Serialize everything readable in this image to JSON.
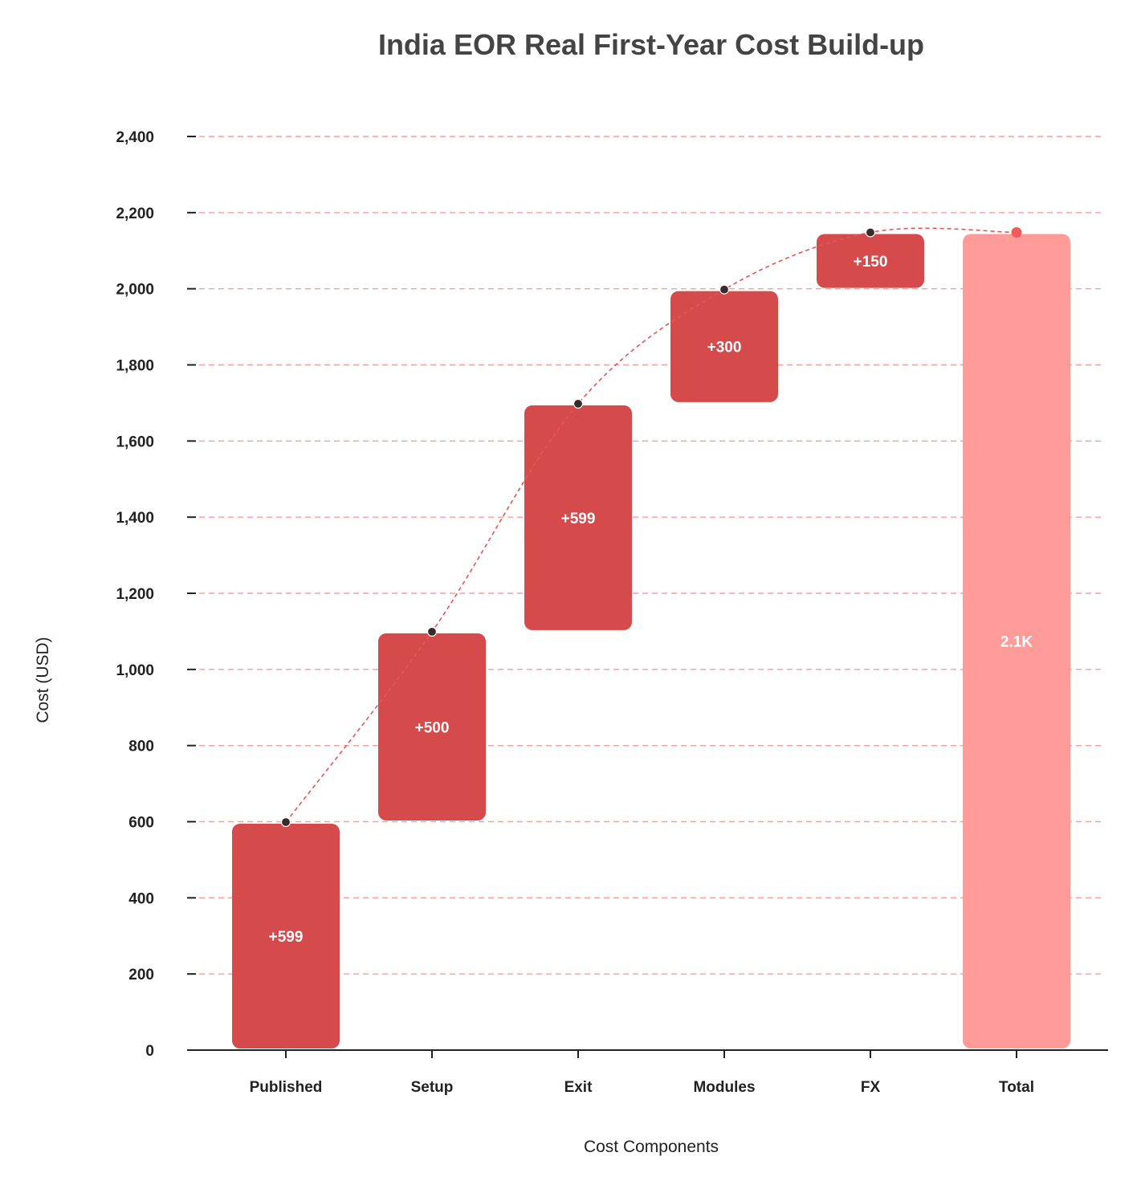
{
  "chart_data": {
    "type": "waterfall",
    "title": "India EOR Real First-Year Cost Build-up",
    "xlabel": "Cost Components",
    "ylabel": "Cost (USD)",
    "categories": [
      "Published",
      "Setup",
      "Exit",
      "Modules",
      "FX",
      "Total"
    ],
    "values": [
      599,
      500,
      599,
      300,
      150,
      2148
    ],
    "labels": [
      "+599",
      "+500",
      "+599",
      "+300",
      "+150",
      "2.1K"
    ],
    "is_total": [
      false,
      false,
      false,
      false,
      false,
      true
    ],
    "ylim": [
      0,
      2400
    ],
    "yticks": [
      0,
      200,
      400,
      600,
      800,
      1000,
      1200,
      1400,
      1600,
      1800,
      2000,
      2200,
      2400
    ],
    "ytick_labels": [
      "0",
      "200",
      "400",
      "600",
      "800",
      "1,000",
      "1,200",
      "1,400",
      "1,600",
      "1,800",
      "2,000",
      "2,200",
      "2,400"
    ],
    "grid": true,
    "colors": {
      "increase": "#d54a4a",
      "total": "#ff9b99",
      "connector": "#e85555",
      "marker": "#3a2a2a",
      "total_marker": "#f45a5a"
    }
  }
}
